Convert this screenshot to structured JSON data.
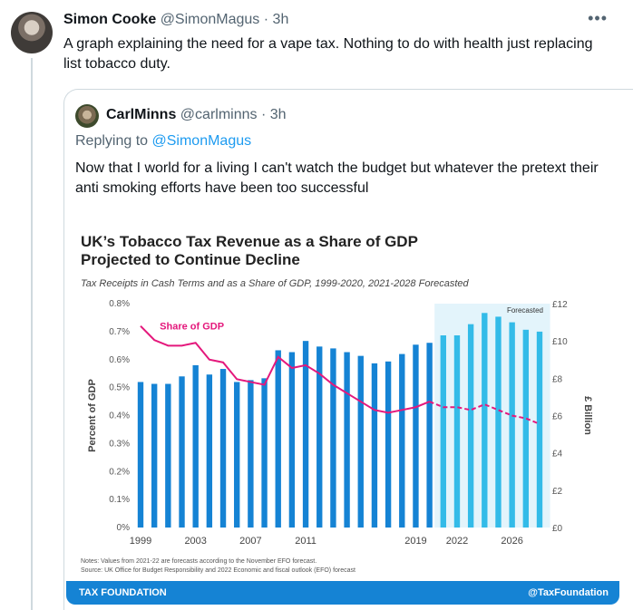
{
  "tweet": {
    "name": "Simon Cooke",
    "handle": "@SimonMagus",
    "time": "· 3h",
    "text": "A graph explaining the need for a vape tax. Nothing to do with health just replacing list tobacco duty.",
    "more_icon": "more-dots-icon"
  },
  "quote": {
    "name": "CarlMinns",
    "handle": "@carlminns",
    "time": "· 3h",
    "replying_prefix": "Replying to",
    "replying_handle": "@SimonMagus",
    "text": "Now that I world for a living I can't watch the budget but whatever the pretext their anti smoking efforts have been too successful"
  },
  "figure": {
    "title_line1": "UK’s Tobacco Tax Revenue as a Share of GDP",
    "title_line2": "Projected to Continue Decline",
    "subtitle": "Tax Receipts in Cash Terms and as a Share of GDP, 1999-2020, 2021-2028 Forecasted",
    "note1": "Notes: Values from 2021-22 are forecasts according to the November EFO forecast.",
    "note2": "Source: UK Office for Budget Responsibility and 2022 Economic and fiscal outlook (EFO) forecast",
    "brand_left": "TAX FOUNDATION",
    "brand_right": "@TaxFoundation",
    "colors": {
      "bar": "#1583d4",
      "bar_forecast": "#33bbe8",
      "line": "#e4187c",
      "forecast_bg": "#e3f4fb"
    }
  },
  "chart_data": {
    "type": "bar",
    "x": [
      1999,
      2000,
      2001,
      2002,
      2003,
      2004,
      2005,
      2006,
      2007,
      2008,
      2009,
      2010,
      2011,
      2012,
      2013,
      2014,
      2015,
      2016,
      2017,
      2018,
      2019,
      2020,
      2021,
      2022,
      2023,
      2024,
      2025,
      2026,
      2027,
      2028
    ],
    "series": [
      {
        "values": [
          7.8,
          7.7,
          7.7,
          8.1,
          8.7,
          8.2,
          8.5,
          7.8,
          7.9,
          8.0,
          9.5,
          9.4,
          10.0,
          9.7,
          9.6,
          9.4,
          9.2,
          8.8,
          8.9,
          9.3,
          9.8,
          9.9,
          10.3,
          10.3,
          10.9,
          11.5,
          11.3,
          11.0,
          10.6,
          10.5
        ]
      },
      {
        "name": "Share of GDP",
        "values": [
          0.72,
          0.67,
          0.65,
          0.65,
          0.66,
          0.6,
          0.59,
          0.53,
          0.52,
          0.51,
          0.61,
          0.57,
          0.58,
          0.55,
          0.51,
          0.48,
          0.45,
          0.42,
          0.41,
          0.42,
          0.43,
          0.45,
          0.43,
          0.43,
          0.42,
          0.44,
          0.42,
          0.4,
          0.39,
          0.37
        ]
      }
    ],
    "forecast_start": 2021,
    "forecast_label": "Forecasted",
    "xticks": [
      "1999",
      "2003",
      "2007",
      "2011",
      "2019",
      "2022",
      "2026"
    ],
    "xtick_values": [
      1999,
      2003,
      2007,
      2011,
      2019,
      2022,
      2026
    ],
    "yticks_left": [
      "0%",
      "0.1%",
      "0.2%",
      "0.3%",
      "0.4%",
      "0.5%",
      "0.6%",
      "0.7%",
      "0.8%"
    ],
    "yticks_right": [
      "£0",
      "£2",
      "£4",
      "£6",
      "£8",
      "£10",
      "£12"
    ],
    "ylabel": "Percent of GDP",
    "ylabel_right": "£ Billion",
    "ylim": [
      0,
      0.8
    ],
    "ylim_right": [
      0,
      12
    ],
    "series_label": "Share of GDP"
  }
}
